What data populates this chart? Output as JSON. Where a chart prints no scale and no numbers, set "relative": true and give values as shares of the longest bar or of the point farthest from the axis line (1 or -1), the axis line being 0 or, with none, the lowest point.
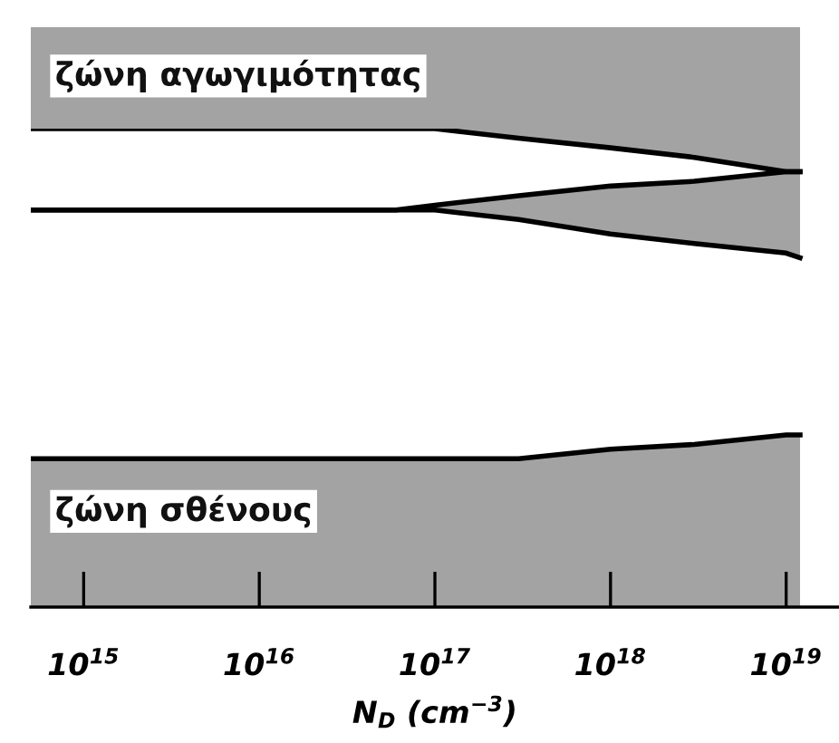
{
  "chart_data": {
    "type": "line",
    "relative": true,
    "log": "x",
    "xlabel": "N$_{D}$ (cm$^{−3}$)",
    "x": [
      500000000000000.0,
      1000000000000000.0,
      1e+16,
      6e+16,
      1e+17,
      3e+17,
      1e+18,
      3e+18,
      1e+19,
      1.2e+19
    ],
    "xlim": [
      500000000000000.0,
      2e+19
    ],
    "xticks": [
      {
        "value": 1000000000000000.0,
        "label": "10$^{15}$"
      },
      {
        "value": 1e+16,
        "label": "10$^{16}$"
      },
      {
        "value": 1e+17,
        "label": "10$^{17}$"
      },
      {
        "value": 1e+18,
        "label": "10$^{18}$"
      },
      {
        "value": 1e+19,
        "label": "10$^{19}$"
      }
    ],
    "tick_labels": "x",
    "grid": false,
    "marker": "none",
    "line_style": "solid",
    "series": [
      {
        "color": "#000000",
        "values": [
          1,
          1,
          1,
          1,
          1,
          0.98,
          0.96,
          0.94,
          0.91,
          0.91
        ]
      },
      {
        "color": "#000000",
        "values": [
          0.83,
          0.83,
          0.83,
          0.83,
          0.84,
          0.86,
          0.88,
          0.89,
          0.91,
          0.91
        ],
        "lower": [
          0.83,
          0.83,
          0.83,
          0.83,
          0.83,
          0.81,
          0.78,
          0.76,
          0.74,
          0.73
        ],
        "upper": [
          0.83,
          0.83,
          0.83,
          0.83,
          0.84,
          0.86,
          0.88,
          0.89,
          0.91,
          0.91
        ]
      },
      {
        "color": "#000000",
        "values": [
          0.83,
          0.83,
          0.83,
          0.83,
          0.83,
          0.81,
          0.78,
          0.76,
          0.74,
          0.73
        ]
      },
      {
        "type": "area",
        "color": "#000000",
        "values": [
          0.31,
          0.31,
          0.31,
          0.31,
          0.31,
          0.31,
          0.33,
          0.34,
          0.36,
          0.36
        ]
      }
    ],
    "annotations": [
      "ζώνη αγωγιμότητας",
      "ζώνη σθένους"
    ]
  }
}
